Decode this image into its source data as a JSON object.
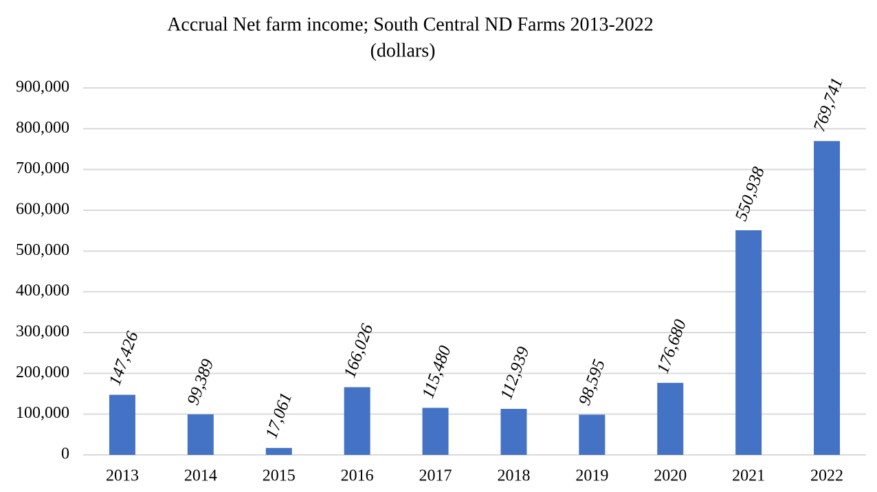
{
  "chart_data": {
    "type": "bar",
    "title": "Accrual Net farm income; South Central ND Farms 2013-2022",
    "subtitle": "(dollars)",
    "categories": [
      "2013",
      "2014",
      "2015",
      "2016",
      "2017",
      "2018",
      "2019",
      "2020",
      "2021",
      "2022"
    ],
    "values": [
      147426,
      99389,
      17061,
      166026,
      115480,
      112939,
      98595,
      176680,
      550938,
      769741
    ],
    "value_labels": [
      "147,426",
      "99,389",
      "17,061",
      "166,026",
      "115,480",
      "112,939",
      "98,595",
      "176,680",
      "550,938",
      "769,741"
    ],
    "color": "#4472c4",
    "ylim": [
      0,
      900000
    ],
    "yticks": [
      0,
      {
        "value": 100000,
        "label": "100,000"
      },
      {
        "value": 200000,
        "label": "200,000"
      },
      {
        "value": 300000,
        "label": "300,000"
      },
      {
        "value": 400000,
        "label": "400,000"
      },
      {
        "value": 500000,
        "label": "500,000"
      },
      {
        "value": 600000,
        "label": "600,000"
      },
      {
        "value": 700000,
        "label": "700,000"
      },
      {
        "value": 800000,
        "label": "800,000"
      },
      {
        "value": 900000,
        "label": "900,000"
      }
    ],
    "grid": true
  }
}
